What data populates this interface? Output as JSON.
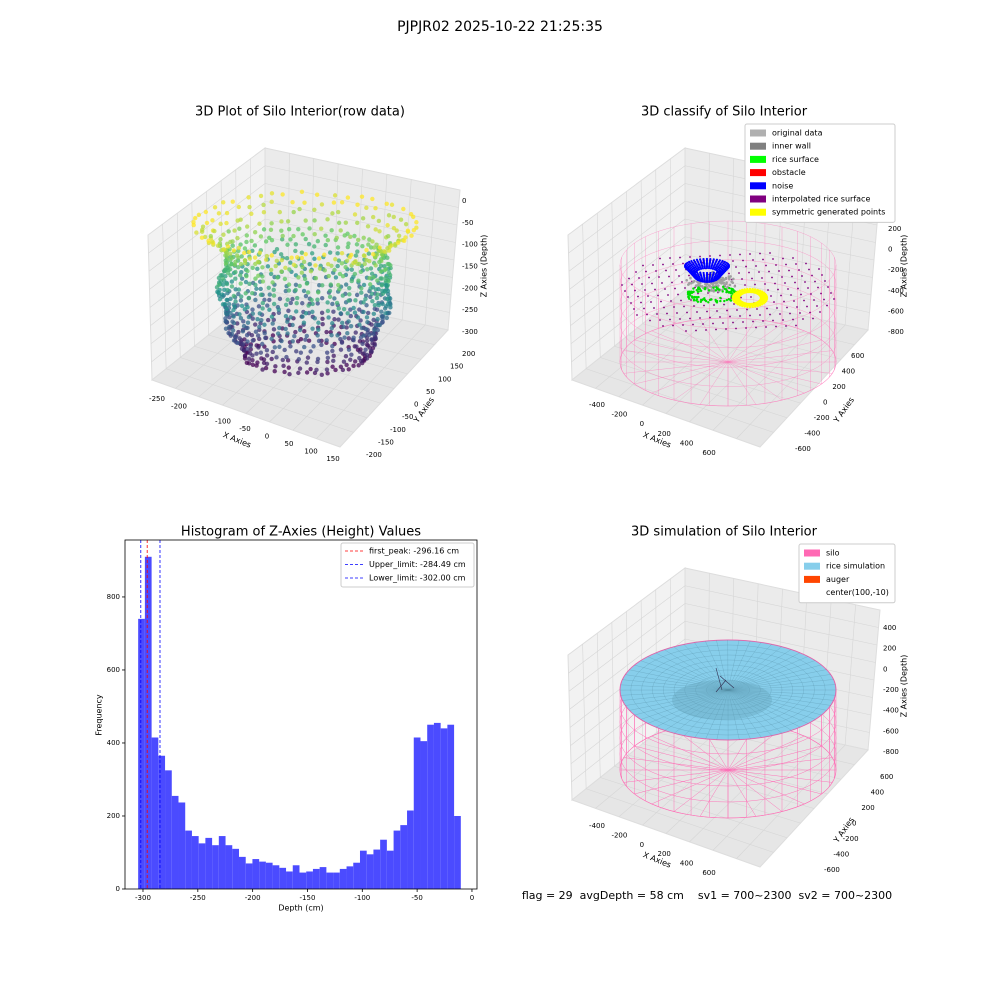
{
  "title": "PJPJR02 2025-10-22 21:25:35",
  "footer": "flag = 29  avgDepth = 58 cm    sv1 = 700~2300  sv2 = 700~2300",
  "chart_data": [
    {
      "type": "scatter3d",
      "title": "3D Plot of Silo Interior(row data)",
      "xlabel": "X Axies",
      "ylabel": "Y Axies",
      "zlabel": "Z Axies (Depth)",
      "xticks": [
        -250,
        -200,
        -150,
        -100,
        -50,
        0,
        50,
        100,
        150
      ],
      "yticks": [
        200,
        150,
        100,
        50,
        0,
        -50,
        -100,
        -150,
        -200
      ],
      "zticks": [
        0,
        -50,
        -100,
        -150,
        -200,
        -250,
        -300
      ]
    },
    {
      "type": "classify3d",
      "title": "3D classify of Silo Interior",
      "xlabel": "X Axies",
      "ylabel": "Y Axies",
      "zlabel": "Z Axies (Depth)",
      "xticks": [
        -400,
        -200,
        0,
        200,
        400,
        600
      ],
      "yticks": [
        600,
        400,
        200,
        0,
        -200,
        -400,
        -600
      ],
      "zticks": [
        200,
        0,
        -200,
        -400,
        -600,
        -800
      ],
      "legend": [
        {
          "name": "original data",
          "color": "#b0b0b0"
        },
        {
          "name": "inner wall",
          "color": "#808080"
        },
        {
          "name": "rice surface",
          "color": "#00ff00"
        },
        {
          "name": "obstacle",
          "color": "#ff0000"
        },
        {
          "name": "noise",
          "color": "#0000ff"
        },
        {
          "name": "interpolated rice surface",
          "color": "#800080"
        },
        {
          "name": "symmetric generated points",
          "color": "#ffff00"
        }
      ]
    },
    {
      "type": "histogram",
      "title": "Histogram of Z-Axies (Height) Values",
      "xlabel": "Depth (cm)",
      "ylabel": "Frequency",
      "color": "#4b4bff",
      "bins": [
        -304.4,
        -298.27,
        -292.14,
        -286.01,
        -279.88,
        -273.75,
        -267.62,
        -261.49,
        -255.36,
        -249.23,
        -243.1,
        -236.97,
        -230.84,
        -224.71,
        -218.58,
        -212.45,
        -206.32,
        -200.19,
        -194.06,
        -187.93,
        -181.8,
        -175.67,
        -169.54,
        -163.41,
        -157.28,
        -151.15,
        -145.02,
        -138.89,
        -132.76,
        -126.63,
        -120.5,
        -114.37,
        -108.24,
        -102.11,
        -95.98,
        -89.85,
        -83.72,
        -77.59,
        -71.46,
        -65.33,
        -59.2,
        -53.07,
        -46.94,
        -40.81,
        -34.68,
        -28.55,
        -22.42,
        -16.29,
        -10.16
      ],
      "counts": [
        740,
        910,
        415,
        365,
        325,
        255,
        237,
        160,
        145,
        125,
        140,
        120,
        145,
        120,
        110,
        88,
        70,
        82,
        75,
        72,
        65,
        58,
        48,
        65,
        45,
        48,
        55,
        60,
        45,
        45,
        55,
        62,
        72,
        105,
        95,
        108,
        135,
        105,
        160,
        175,
        215,
        415,
        405,
        450,
        455,
        440,
        450,
        200
      ],
      "xlim": [
        -316.4,
        4.6
      ],
      "ylim": [
        0,
        956
      ],
      "xticks": [
        -300,
        -250,
        -200,
        -150,
        -100,
        -50,
        0
      ],
      "yticks": [
        0,
        200,
        400,
        600,
        800
      ],
      "lines": [
        {
          "name": "first_peak: -296.16 cm",
          "value": -296.16,
          "color": "#ff0000"
        },
        {
          "name": "Upper_limit: -284.49 cm",
          "value": -284.49,
          "color": "#0000ff"
        },
        {
          "name": "Lower_limit: -302.00 cm",
          "value": -302.0,
          "color": "#0000ff"
        }
      ]
    },
    {
      "type": "surface3d",
      "title": "3D simulation of Silo Interior",
      "xlabel": "X Axies",
      "ylabel": "Y Axies",
      "zlabel": "Z Axies (Depth)",
      "xticks": [
        -400,
        -200,
        0,
        200,
        400,
        600
      ],
      "yticks": [
        600,
        400,
        200,
        0,
        -200,
        -400,
        -600
      ],
      "zticks": [
        400,
        200,
        0,
        -200,
        -400,
        -600,
        -800
      ],
      "legend": [
        {
          "name": "silo",
          "color": "#ff69b4"
        },
        {
          "name": "rice simulation",
          "color": "#87ceeb"
        },
        {
          "name": "auger",
          "color": "#ff4500"
        },
        {
          "name": "center(100,-10)",
          "color": null
        }
      ]
    }
  ]
}
